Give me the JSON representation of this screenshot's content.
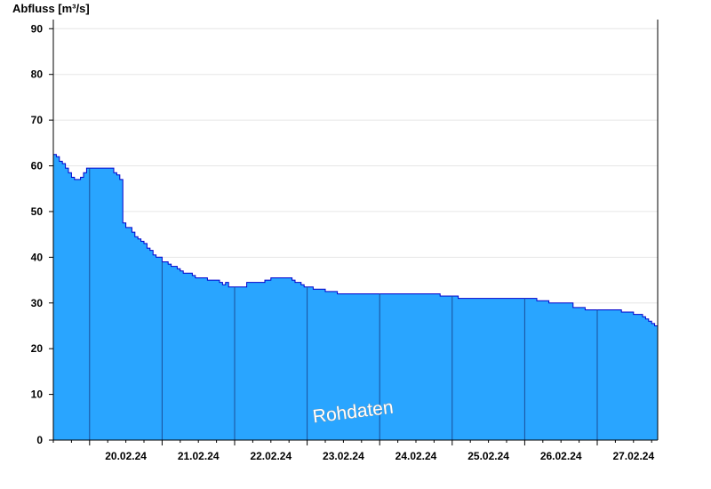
{
  "chart_data": {
    "type": "area",
    "ylabel": "Abfluss [m³/s]",
    "ylim": [
      0,
      92
    ],
    "yticks": [
      0,
      10,
      20,
      30,
      40,
      50,
      60,
      70,
      80,
      90
    ],
    "xlim": [
      "2024-02-19T12:00",
      "2024-02-27T20:00"
    ],
    "xtick_labels": [
      "20.02.24",
      "21.02.24",
      "22.02.24",
      "23.02.24",
      "24.02.24",
      "25.02.24",
      "26.02.24",
      "27.02.24"
    ],
    "grid": true,
    "fill_color": "#29a5ff",
    "line_color": "#0000cc",
    "watermark": "Rohdaten",
    "series": [
      {
        "x": [
          "2024-02-19T12:00",
          "2024-02-19T13:00",
          "2024-02-19T14:00",
          "2024-02-19T15:00",
          "2024-02-19T16:00",
          "2024-02-19T17:00",
          "2024-02-19T18:00",
          "2024-02-19T19:00",
          "2024-02-19T20:00",
          "2024-02-19T21:00",
          "2024-02-19T22:00",
          "2024-02-19T23:00",
          "2024-02-20T00:00",
          "2024-02-20T01:00",
          "2024-02-20T02:00",
          "2024-02-20T03:00",
          "2024-02-20T04:00",
          "2024-02-20T05:00",
          "2024-02-20T06:00",
          "2024-02-20T07:00",
          "2024-02-20T08:00",
          "2024-02-20T09:00",
          "2024-02-20T10:00",
          "2024-02-20T11:00",
          "2024-02-20T12:00",
          "2024-02-20T13:00",
          "2024-02-20T14:00",
          "2024-02-20T15:00",
          "2024-02-20T16:00",
          "2024-02-20T17:00",
          "2024-02-20T18:00",
          "2024-02-20T19:00",
          "2024-02-20T20:00",
          "2024-02-20T21:00",
          "2024-02-20T22:00",
          "2024-02-20T23:00",
          "2024-02-21T00:00",
          "2024-02-21T01:00",
          "2024-02-21T02:00",
          "2024-02-21T03:00",
          "2024-02-21T04:00",
          "2024-02-21T05:00",
          "2024-02-21T06:00",
          "2024-02-21T07:00",
          "2024-02-21T08:00",
          "2024-02-21T09:00",
          "2024-02-21T10:00",
          "2024-02-21T11:00",
          "2024-02-21T12:00",
          "2024-02-21T13:00",
          "2024-02-21T14:00",
          "2024-02-21T15:00",
          "2024-02-21T16:00",
          "2024-02-21T17:00",
          "2024-02-21T18:00",
          "2024-02-21T19:00",
          "2024-02-21T20:00",
          "2024-02-21T21:00",
          "2024-02-21T22:00",
          "2024-02-21T23:00",
          "2024-02-22T00:00",
          "2024-02-22T02:00",
          "2024-02-22T04:00",
          "2024-02-22T06:00",
          "2024-02-22T08:00",
          "2024-02-22T10:00",
          "2024-02-22T12:00",
          "2024-02-22T14:00",
          "2024-02-22T16:00",
          "2024-02-22T18:00",
          "2024-02-22T19:00",
          "2024-02-22T20:00",
          "2024-02-22T21:00",
          "2024-02-22T22:00",
          "2024-02-22T23:00",
          "2024-02-23T00:00",
          "2024-02-23T02:00",
          "2024-02-23T04:00",
          "2024-02-23T06:00",
          "2024-02-23T08:00",
          "2024-02-23T10:00",
          "2024-02-23T12:00",
          "2024-02-23T14:00",
          "2024-02-23T16:00",
          "2024-02-23T18:00",
          "2024-02-23T20:00",
          "2024-02-23T22:00",
          "2024-02-24T00:00",
          "2024-02-24T02:00",
          "2024-02-24T04:00",
          "2024-02-24T06:00",
          "2024-02-24T08:00",
          "2024-02-24T10:00",
          "2024-02-24T12:00",
          "2024-02-24T14:00",
          "2024-02-24T16:00",
          "2024-02-24T18:00",
          "2024-02-24T20:00",
          "2024-02-24T22:00",
          "2024-02-25T00:00",
          "2024-02-25T02:00",
          "2024-02-25T04:00",
          "2024-02-25T06:00",
          "2024-02-25T08:00",
          "2024-02-25T10:00",
          "2024-02-25T12:00",
          "2024-02-25T14:00",
          "2024-02-25T15:00",
          "2024-02-25T16:00",
          "2024-02-25T18:00",
          "2024-02-25T20:00",
          "2024-02-25T22:00",
          "2024-02-26T00:00",
          "2024-02-26T04:00",
          "2024-02-26T08:00",
          "2024-02-26T12:00",
          "2024-02-26T16:00",
          "2024-02-26T20:00",
          "2024-02-27T00:00",
          "2024-02-27T04:00",
          "2024-02-27T08:00",
          "2024-02-27T12:00",
          "2024-02-27T14:00",
          "2024-02-27T15:00",
          "2024-02-27T16:00",
          "2024-02-27T17:00",
          "2024-02-27T18:00",
          "2024-02-27T19:00",
          "2024-02-27T20:00"
        ],
        "y": [
          62.5,
          62,
          61,
          60.5,
          59.5,
          58.5,
          57.5,
          57,
          57,
          57.5,
          58.5,
          59.5,
          59.5,
          59.5,
          59.5,
          59.5,
          59.5,
          59.5,
          59.5,
          59.5,
          58.5,
          58,
          57,
          47.5,
          46.5,
          46.5,
          45.5,
          44.5,
          44,
          43.5,
          43,
          42,
          41.5,
          40.5,
          40,
          40,
          39,
          39,
          38.5,
          38,
          38,
          37.5,
          37,
          36.5,
          36.5,
          36.5,
          36,
          35.5,
          35.5,
          35.5,
          35.5,
          35,
          35,
          35,
          35,
          34.5,
          34,
          34.5,
          33.5,
          33.5,
          33.5,
          33.5,
          34.5,
          34.5,
          34.5,
          35,
          35.5,
          35.5,
          35.5,
          35.5,
          35,
          34.5,
          34.5,
          34,
          33.5,
          33.5,
          33,
          33,
          32.5,
          32.5,
          32,
          32,
          32,
          32,
          32,
          32,
          32,
          32,
          32,
          32,
          32,
          32,
          32,
          32,
          32,
          32,
          32,
          31.5,
          31.5,
          31.5,
          31,
          31,
          31,
          31,
          31,
          31,
          31,
          31,
          31,
          31,
          31,
          31,
          31,
          30.5,
          30,
          30,
          29,
          28.5,
          28.5,
          28.5,
          28,
          27.5,
          27.5,
          27,
          26.5,
          26,
          25.5,
          25,
          25
        ]
      }
    ]
  }
}
